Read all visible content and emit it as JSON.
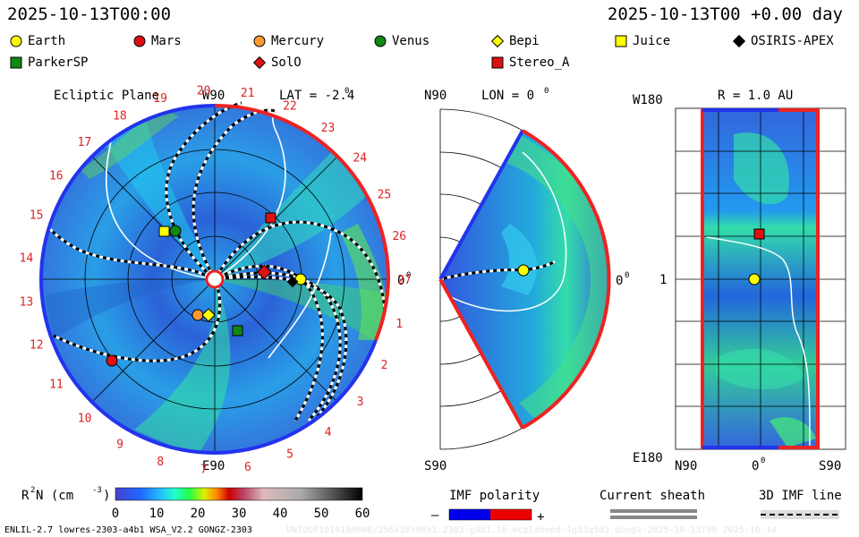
{
  "header": {
    "title_left": "2025-10-13T00:00",
    "title_right": "2025-10-13T00 +0.00 day"
  },
  "legend": [
    {
      "label": "Earth",
      "shape": "circle",
      "color": "#ffff00"
    },
    {
      "label": "Mars",
      "shape": "circle",
      "color": "#dd1111"
    },
    {
      "label": "Mercury",
      "shape": "circle",
      "color": "#ff9933"
    },
    {
      "label": "Venus",
      "shape": "circle",
      "color": "#118811"
    },
    {
      "label": "Bepi",
      "shape": "diamond",
      "color": "#ffff00"
    },
    {
      "label": "Juice",
      "shape": "square",
      "color": "#ffff00"
    },
    {
      "label": "OSIRIS-APEX",
      "shape": "diamond",
      "color": "#000000"
    },
    {
      "label": "ParkerSP",
      "shape": "square",
      "color": "#118811"
    },
    {
      "label": "SolO",
      "shape": "diamond",
      "color": "#dd1111"
    },
    {
      "label": "Stereo_A",
      "shape": "square",
      "color": "#dd1111"
    }
  ],
  "panel1": {
    "title": "Ecliptic Plane",
    "lat_label": "LAT = -2.4",
    "lat_sup": "0",
    "w90": "W90",
    "e90": "E90",
    "zero": "0",
    "zero_sup": "0",
    "carrington": [
      "1",
      "2",
      "3",
      "4",
      "5",
      "6",
      "7",
      "8",
      "9",
      "10",
      "11",
      "12",
      "13",
      "14",
      "15",
      "16",
      "17",
      "18",
      "19",
      "20",
      "21",
      "22",
      "23",
      "24",
      "25",
      "26",
      "27"
    ]
  },
  "panel2": {
    "n90": "N90",
    "s90": "S90",
    "lon_label": "LON = 0",
    "lon_sup": "0",
    "zero": "0",
    "zero_sup": "0"
  },
  "panel3": {
    "title": "R = 1.0 AU",
    "w180": "W180",
    "e180": "E180",
    "one": "1",
    "n90": "N90",
    "zero": "0",
    "zero_sup": "0",
    "s90": "S90"
  },
  "colorbar": {
    "label": "R",
    "label_sup": "2",
    "label_rest": " N (cm",
    "label_unit_sup": "-3",
    "label_end": ")",
    "ticks": [
      "0",
      "10",
      "20",
      "30",
      "40",
      "50",
      "60"
    ],
    "min": 0,
    "max": 60
  },
  "imf": {
    "title": "IMF polarity",
    "minus": "–",
    "plus": "+"
  },
  "sheath": {
    "title": "Current sheath"
  },
  "imfline": {
    "title": "3D IMF line"
  },
  "footer": {
    "left": "ENLIL-2.7 lowres-2303-a4b1 WSA_V2.2 GONGZ-2303",
    "right": "UNIQUE1014180000/256x30x90x1.2303-g4b1.16-mcplanned-1g53q5d2.gongz-2025-10-13T00   2025-10-14"
  }
}
